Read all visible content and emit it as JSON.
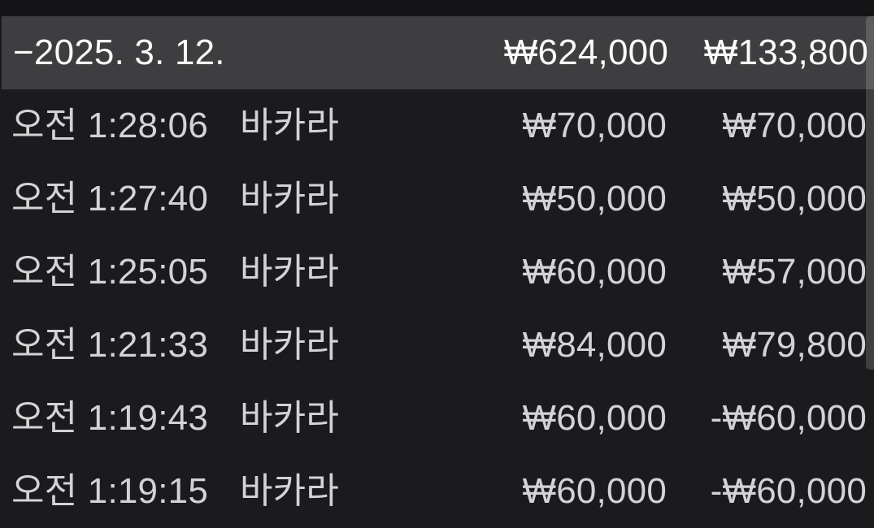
{
  "header": {
    "date_label": "−2025. 3. 12.",
    "total_amount": "₩624,000",
    "total_result": "₩133,800"
  },
  "rows": [
    {
      "time": "오전 1:28:06",
      "game": "바카라",
      "amount": "₩70,000",
      "result": "₩70,000"
    },
    {
      "time": "오전 1:27:40",
      "game": "바카라",
      "amount": "₩50,000",
      "result": "₩50,000"
    },
    {
      "time": "오전 1:25:05",
      "game": "바카라",
      "amount": "₩60,000",
      "result": "₩57,000"
    },
    {
      "time": "오전 1:21:33",
      "game": "바카라",
      "amount": "₩84,000",
      "result": "₩79,800"
    },
    {
      "time": "오전 1:19:43",
      "game": "바카라",
      "amount": "₩60,000",
      "result": "-₩60,000"
    },
    {
      "time": "오전 1:19:15",
      "game": "바카라",
      "amount": "₩60,000",
      "result": "-₩60,000"
    }
  ],
  "colors": {
    "page_background": "#1b1b1d",
    "section_header_background": "#3e3e40",
    "header_text": "#fafafa",
    "row_text": "#d3d3d5",
    "top_band": "#141416",
    "scrollbar": "rgba(255,255,255,0.16)"
  }
}
